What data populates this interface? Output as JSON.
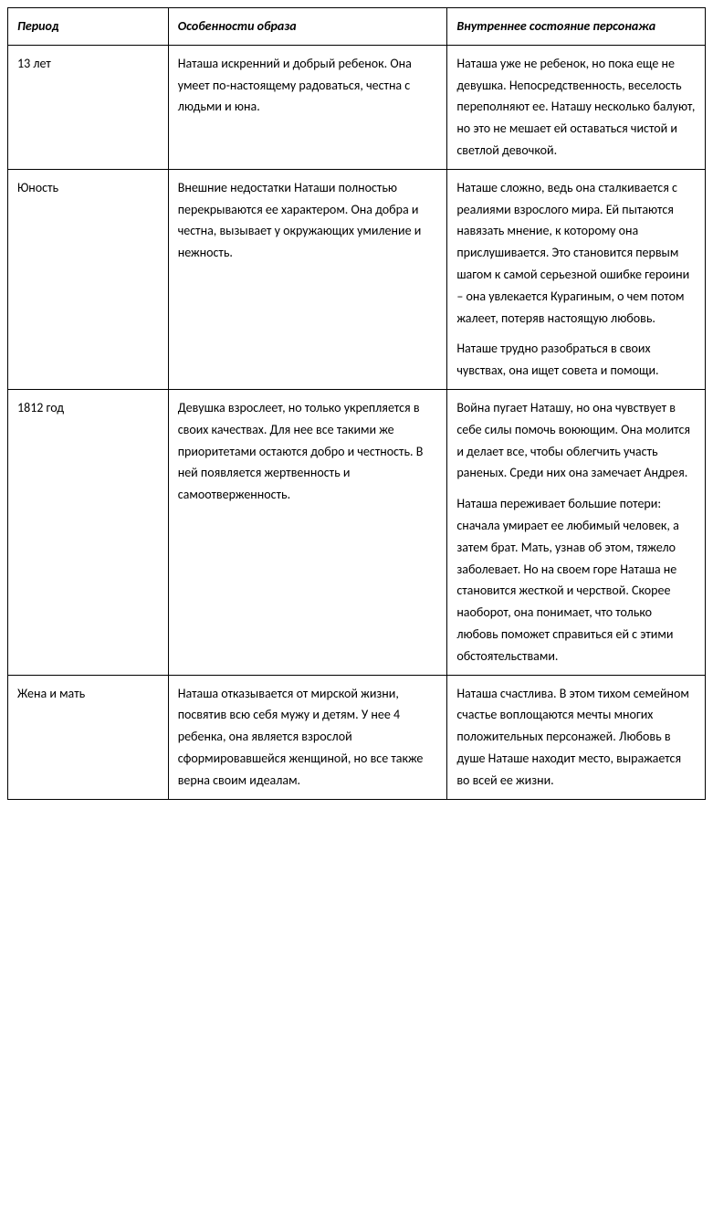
{
  "table": {
    "headers": {
      "period": "Период",
      "features": "Особенности образа",
      "state": "Внутреннее состояние персонажа"
    },
    "rows": [
      {
        "period": "13 лет",
        "features_paragraphs": [
          "Наташа искренний и добрый ребенок. Она умеет по-настоящему радоваться, честна с людьми и юна."
        ],
        "state_paragraphs": [
          "Наташа уже не ребенок, но пока еще не девушка. Непосредственность, веселость переполняют ее. Наташу несколько балуют, но это не мешает ей оставаться чистой и светлой девочкой."
        ]
      },
      {
        "period": "Юность",
        "features_paragraphs": [
          "Внешние недостатки Наташи полностью перекрываются ее характером. Она добра и честна, вызывает у окружающих умиление и нежность."
        ],
        "state_paragraphs": [
          "Наташе сложно, ведь она сталкивается с реалиями взрослого мира. Ей пытаются навязать мнение, к которому она прислушивается. Это становится первым шагом к самой серьезной ошибке героини – она увлекается Курагиным, о чем потом жалеет, потеряв настоящую любовь.",
          "Наташе трудно разобраться в своих чувствах, она ищет совета и помощи."
        ]
      },
      {
        "period": "1812 год",
        "features_paragraphs": [
          "Девушка взрослеет, но только укрепляется в своих качествах. Для нее все такими же приоритетами остаются добро и честность. В ней появляется жертвенность и самоотверженность."
        ],
        "state_paragraphs": [
          "Война пугает Наташу, но она чувствует в себе силы помочь воюющим. Она молится и делает все, чтобы облегчить участь раненых. Среди них она замечает Андрея.",
          "Наташа переживает большие потери: сначала умирает ее любимый человек, а затем брат. Мать, узнав об этом, тяжело заболевает. Но на своем горе Наташа не становится жесткой и черствой. Скорее наоборот, она понимает, что только любовь поможет справиться ей с этими обстоятельствами."
        ]
      },
      {
        "period": "Жена и мать",
        "features_paragraphs": [
          "Наташа отказывается от мирской жизни, посвятив всю себя мужу и детям. У нее 4 ребенка, она является взрослой сформировавшейся женщиной, но все также верна своим идеалам."
        ],
        "state_paragraphs": [
          "Наташа счастлива. В этом тихом семейном счастье воплощаются мечты многих положительных персонажей. Любовь в душе Наташе находит место, выражается во всей ее жизни."
        ]
      }
    ]
  },
  "styling": {
    "border_color": "#000000",
    "background_color": "#ffffff",
    "text_color": "#000000",
    "font_family": "Calibri, Arial, sans-serif",
    "header_fontsize": 14,
    "cell_fontsize": 14,
    "line_height": 1.7,
    "col_widths_percent": [
      23,
      40,
      37
    ]
  }
}
